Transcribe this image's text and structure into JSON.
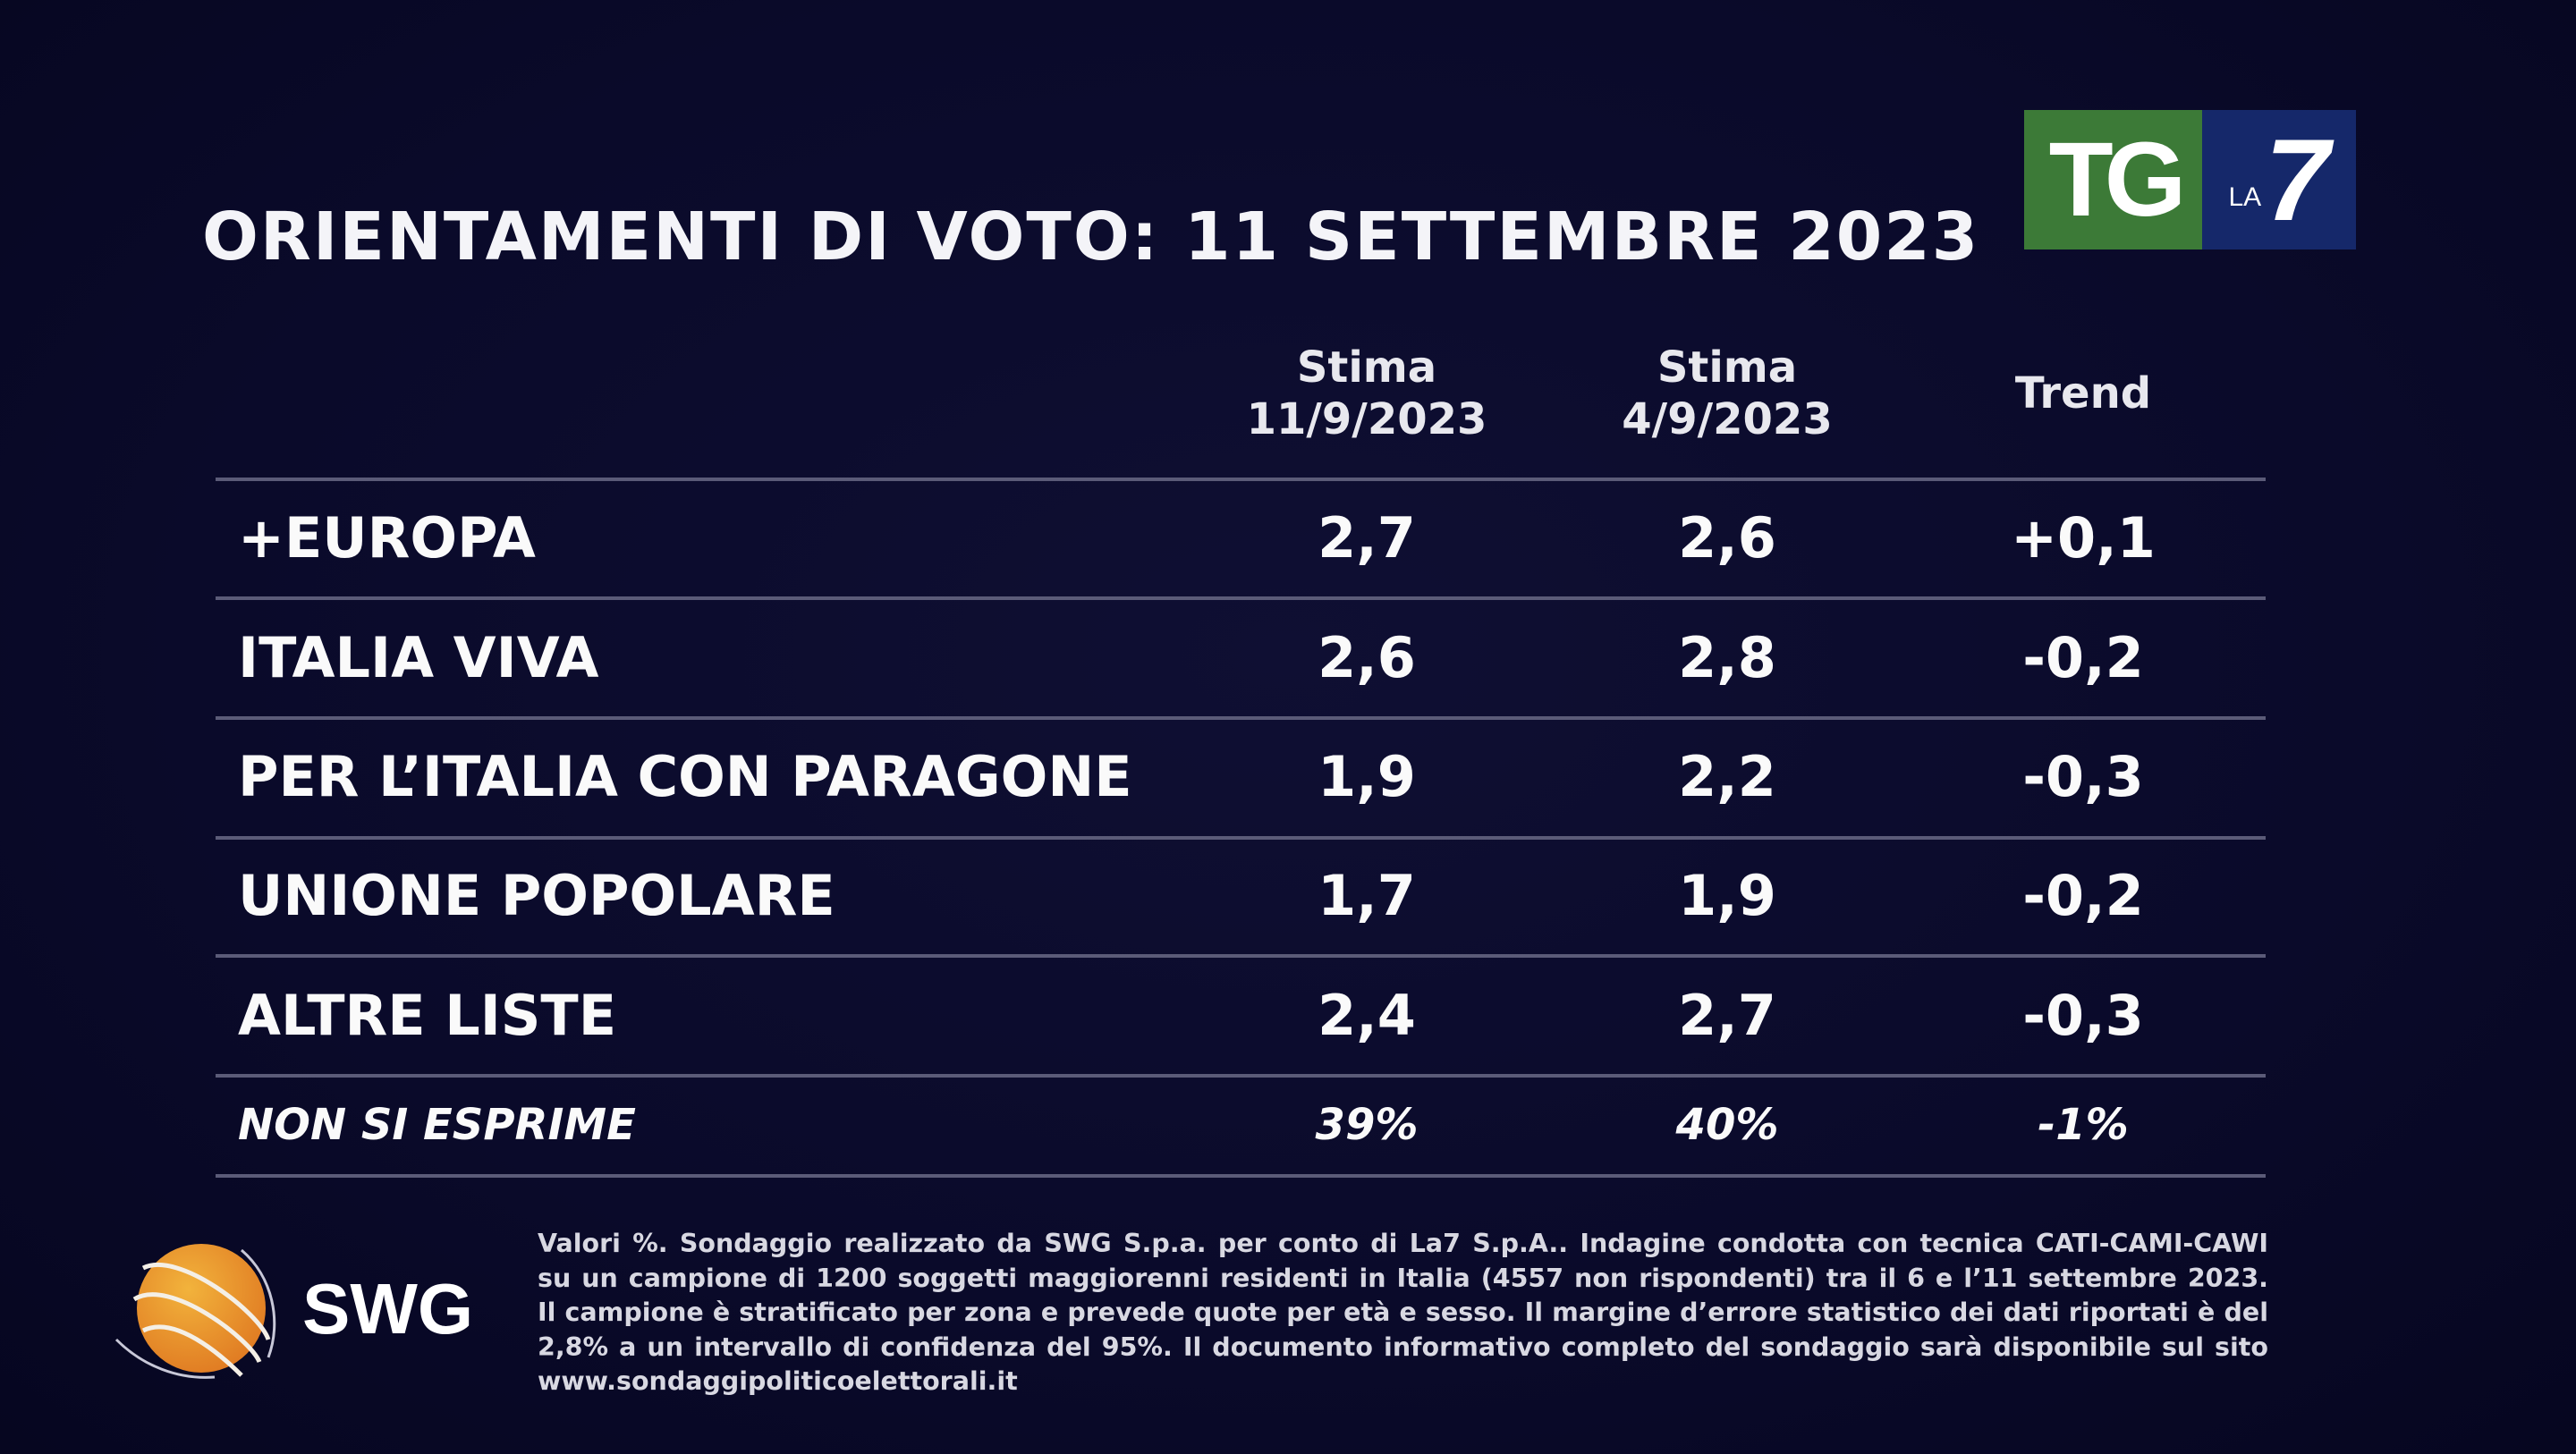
{
  "title": "ORIENTAMENTI DI VOTO: 11 SETTEMBRE 2023",
  "logo": {
    "tg": "TG",
    "la": "LA",
    "seven": "7",
    "green": "#3c7a37",
    "blue": "#15286a"
  },
  "table": {
    "headers": [
      {
        "line1": "Stima",
        "line2": "11/9/2023"
      },
      {
        "line1": "Stima",
        "line2": "4/9/2023"
      },
      {
        "line1": "",
        "line2": "Trend"
      }
    ],
    "rows": [
      {
        "party": "+EUROPA",
        "current": "2,7",
        "previous": "2,6",
        "trend": "+0,1"
      },
      {
        "party": "ITALIA VIVA",
        "current": "2,6",
        "previous": "2,8",
        "trend": "-0,2"
      },
      {
        "party": "PER L’ITALIA CON PARAGONE",
        "current": "1,9",
        "previous": "2,2",
        "trend": "-0,3"
      },
      {
        "party": "UNIONE POPOLARE",
        "current": "1,7",
        "previous": "1,9",
        "trend": "-0,2"
      },
      {
        "party": "ALTRE LISTE",
        "current": "2,4",
        "previous": "2,7",
        "trend": "-0,3"
      },
      {
        "party": "NON SI ESPRIME",
        "current": "39%",
        "previous": "40%",
        "trend": "-1%"
      }
    ]
  },
  "swg_logo": "SWG",
  "footer": [
    "Valori %. Sondaggio realizzato da SWG S.p.a. per conto di La7 S.p.A.. Indagine condotta con tecnica CATI-CAMI-CAWI",
    "su un campione di 1200 soggetti maggiorenni residenti in Italia (4557 non rispondenti) tra il 6 e l’11 settembre 2023.",
    "Il campione è stratificato per zona e prevede quote per età e sesso. Il margine d’errore statistico dei dati riportati è del",
    "2,8% a un intervallo di confidenza del 95%. Il documento informativo completo del sondaggio sarà disponibile sul sito",
    "www.sondaggipoliticoelettorali.it"
  ]
}
